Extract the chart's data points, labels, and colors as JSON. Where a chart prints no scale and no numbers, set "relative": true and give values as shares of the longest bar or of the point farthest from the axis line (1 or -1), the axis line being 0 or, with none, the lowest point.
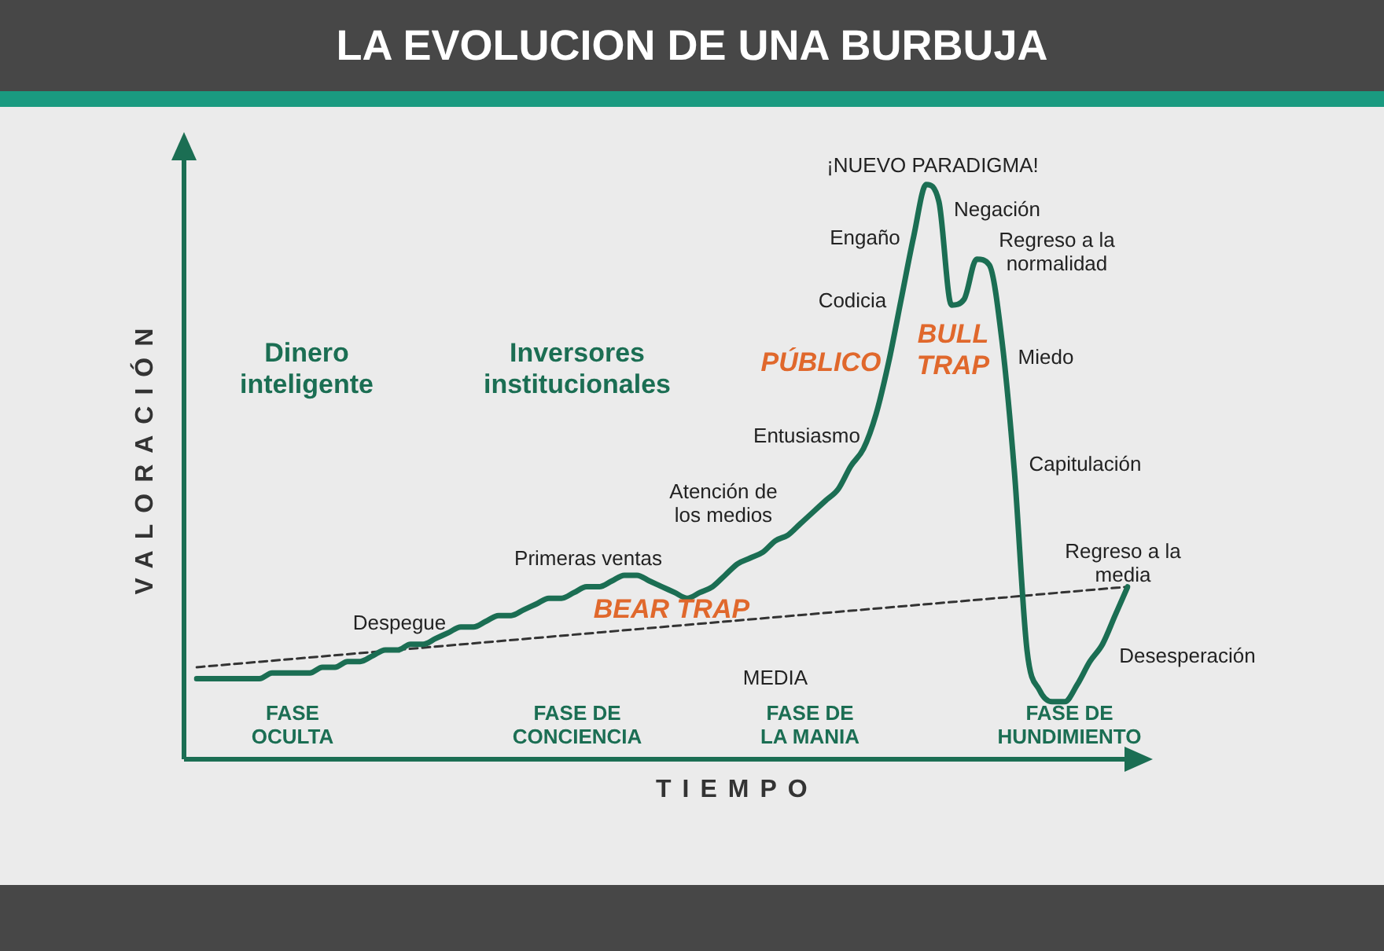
{
  "chart_data": {
    "type": "line",
    "title": "LA EVOLUCION DE UNA BURBUJA",
    "xlabel": "TIEMPO",
    "ylabel": "VALORACIÓN",
    "relative": true,
    "marker": "none",
    "categories": [
      null,
      null,
      null,
      null,
      null,
      null,
      null,
      null,
      null,
      null,
      null,
      null,
      null,
      null,
      null,
      null,
      null,
      null,
      null,
      null,
      null,
      null,
      null,
      null,
      null,
      null,
      null,
      null,
      null,
      null,
      null,
      null,
      null,
      null,
      null,
      null,
      null,
      null,
      null,
      null,
      null,
      null,
      null,
      null,
      null,
      null,
      null,
      null,
      null,
      null,
      null,
      null,
      null,
      null,
      null,
      null,
      null,
      null,
      null,
      null,
      null,
      null,
      null,
      null,
      null,
      null,
      null,
      null,
      null,
      null,
      null,
      null,
      null,
      null,
      null
    ],
    "series": [
      {
        "type": "line",
        "color": "#1b6e53",
        "line_style": "solid",
        "values": [
          0.14,
          0.14,
          0.14,
          0.14,
          0.14,
          0.14,
          0.15,
          0.15,
          0.15,
          0.15,
          0.16,
          0.16,
          0.17,
          0.17,
          0.18,
          0.19,
          0.19,
          0.2,
          0.2,
          0.21,
          0.22,
          0.23,
          0.23,
          0.24,
          0.25,
          0.25,
          0.26,
          0.27,
          0.28,
          0.28,
          0.29,
          0.3,
          0.3,
          0.31,
          0.32,
          0.32,
          0.31,
          0.3,
          0.29,
          0.28,
          0.29,
          0.3,
          0.32,
          0.34,
          0.35,
          0.36,
          0.38,
          0.39,
          0.41,
          0.43,
          0.45,
          0.47,
          0.51,
          0.54,
          0.6,
          0.69,
          0.8,
          0.91,
          1,
          0.97,
          0.79,
          0.8,
          0.87,
          0.86,
          0.73,
          0.5,
          0.19,
          0.12,
          0.1,
          0.1,
          0.13,
          0.17,
          0.2,
          0.25,
          0.3
        ]
      },
      {
        "type": "line",
        "name": "MEDIA",
        "color": "#333333",
        "line_style": "dashed",
        "values": [
          0.16,
          null,
          null,
          null,
          null,
          null,
          null,
          null,
          null,
          null,
          null,
          null,
          null,
          null,
          null,
          null,
          null,
          null,
          null,
          null,
          null,
          null,
          null,
          null,
          null,
          null,
          null,
          null,
          null,
          null,
          null,
          null,
          null,
          null,
          null,
          null,
          null,
          null,
          null,
          null,
          null,
          null,
          null,
          null,
          null,
          null,
          null,
          null,
          null,
          null,
          null,
          null,
          null,
          null,
          null,
          null,
          null,
          null,
          null,
          null,
          null,
          null,
          null,
          null,
          null,
          null,
          null,
          null,
          null,
          null,
          null,
          null,
          null,
          null,
          0.3
        ]
      }
    ],
    "annotations": [
      "Dinero inteligente",
      "Inversores institucionales",
      "PÚBLICO",
      "BULL TRAP",
      "BEAR TRAP",
      "¡NUEVO PARADIGMA!",
      "Negación",
      "Engaño",
      "Regreso  a la normalidad",
      "Codicia",
      "Miedo",
      "Entusiasmo",
      "Capitulación",
      "Atención de los medios",
      "Primeras ventas",
      "Regreso a la media",
      "Despegue",
      "Desesperación",
      "FASE OCULTA",
      "FASE DE CONCIENCIA",
      "FASE DE LA MANIA",
      "FASE DE HUNDIMIENTO"
    ]
  }
}
